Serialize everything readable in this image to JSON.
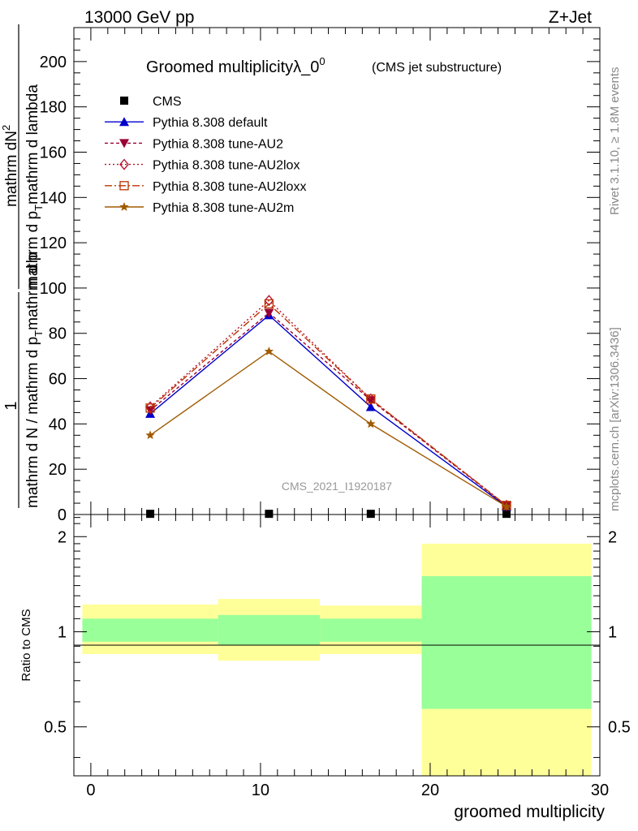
{
  "header": {
    "left": "13000 GeV pp",
    "right": "Z+Jet"
  },
  "side_labels": {
    "rivet": "Rivet 3.1.10, ≥ 1.8M events",
    "mcplots": "mcplots.cern.ch [arXiv:1306.3436]"
  },
  "watermark": "CMS_2021_I1920187",
  "colors": {
    "cms": "#000000",
    "default": "#0000cc",
    "au2": "#990033",
    "au2lox": "#b3112a",
    "au2loxx": "#bb3300",
    "au2m": "#a05a00",
    "band_inner": "#99ff99",
    "band_outer": "#ffff99"
  },
  "chart_data": [
    {
      "type": "line",
      "title_main": "Groomed multiplicityλ_0",
      "title_sup": "0",
      "title_sub": "(CMS jet substructure)",
      "ylabel": {
        "numerator": "mathrm dN",
        "numerator_sup": "2",
        "denominator": "mathrm d p",
        "denominator_sub": "T",
        "denominator_tail": "mathrm d lambda",
        "prefix_num": "1",
        "prefix_den": "mathrm d N / mathrm d p",
        "prefix_den_sub": "T",
        "prefix_den_tail": "mathrm d p"
      },
      "xlim": [
        -1,
        30
      ],
      "ylim": [
        0,
        215
      ],
      "yticks": [
        20,
        40,
        60,
        80,
        100,
        120,
        140,
        160,
        180,
        200
      ],
      "ytick_labels": [
        "20",
        "40",
        "60",
        "80",
        "100",
        "120",
        "140",
        "160",
        "180",
        "200"
      ],
      "y_zero_label": "0",
      "x": [
        3.5,
        10.5,
        16.5,
        24.5
      ],
      "series": [
        {
          "name": "CMS",
          "key": "cms",
          "marker": "square",
          "values": [
            0.3,
            0.3,
            0.3,
            0.3
          ]
        },
        {
          "name": "Pythia 8.308 default",
          "key": "default",
          "marker": "triangle-up",
          "dash": "",
          "values": [
            44.5,
            88.0,
            47.5,
            3.5
          ]
        },
        {
          "name": "Pythia 8.308 tune-AU2",
          "key": "au2",
          "marker": "triangle-down",
          "dash": "4,3",
          "values": [
            46.0,
            89.0,
            50.5,
            3.8
          ]
        },
        {
          "name": "Pythia 8.308 tune-AU2lox",
          "key": "au2lox",
          "marker": "diamond-open",
          "dash": "2,3",
          "values": [
            47.5,
            94.5,
            51.0,
            4.0
          ]
        },
        {
          "name": "Pythia 8.308 tune-AU2loxx",
          "key": "au2loxx",
          "marker": "square-open",
          "dash": "9,3,2,3",
          "values": [
            47.0,
            93.0,
            51.0,
            4.0
          ]
        },
        {
          "name": "Pythia 8.308 tune-AU2m",
          "key": "au2m",
          "marker": "star",
          "dash": "",
          "values": [
            35.0,
            72.0,
            40.0,
            3.5
          ]
        }
      ]
    },
    {
      "type": "area",
      "ylabel": "Ratio to CMS",
      "xlabel": "groomed multiplicity",
      "xlim": [
        -1,
        30
      ],
      "ylim": [
        0.35,
        2.35
      ],
      "ytick_labels": [
        "0.5",
        "1",
        "2"
      ],
      "yticks": [
        0.5,
        1,
        2
      ],
      "xticks": [
        0,
        10,
        20,
        30
      ],
      "xtick_labels": [
        "0",
        "10",
        "20",
        "30"
      ],
      "bins": [
        {
          "x0": -0.5,
          "x1": 7.5,
          "inner": [
            0.93,
            1.1
          ],
          "outer": [
            0.85,
            1.22
          ]
        },
        {
          "x0": 7.5,
          "x1": 13.5,
          "inner": [
            0.91,
            1.13
          ],
          "outer": [
            0.81,
            1.27
          ]
        },
        {
          "x0": 13.5,
          "x1": 19.5,
          "inner": [
            0.93,
            1.1
          ],
          "outer": [
            0.85,
            1.21
          ]
        },
        {
          "x0": 19.5,
          "x1": 29.5,
          "inner": [
            0.57,
            1.5
          ],
          "outer": [
            0.35,
            1.9
          ]
        }
      ]
    }
  ]
}
